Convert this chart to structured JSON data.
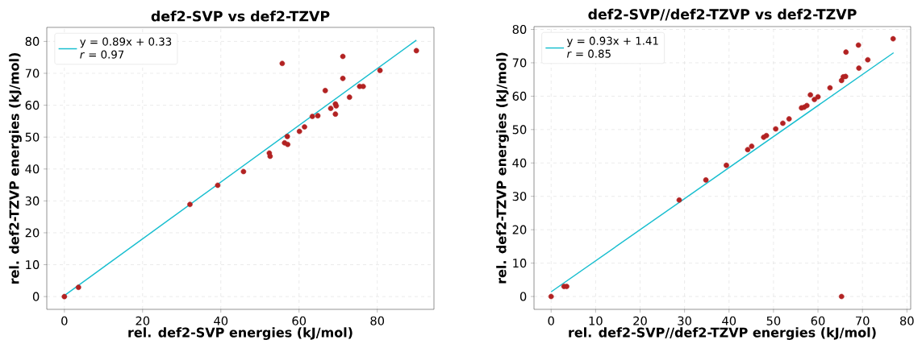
{
  "chart_data": [
    {
      "type": "scatter",
      "title": "def2-SVP vs def2-TZVP",
      "xlabel": "rel. def2-SVP energies (kJ/mol)",
      "ylabel": "rel. def2-TZVP energies (kJ/mol)",
      "x": [
        0,
        3.6,
        32.1,
        39.2,
        45.8,
        52.4,
        52.6,
        55.7,
        56.3,
        57.1,
        57.0,
        60.1,
        61.4,
        63.4,
        64.8,
        66.7,
        68.1,
        69.3,
        69.5,
        69.3,
        71.2,
        71.2,
        72.9,
        75.5,
        76.4,
        80.7,
        90.0
      ],
      "series": [
        {
          "color": "#b22222",
          "values": [
            0,
            2.9,
            28.9,
            34.9,
            39.2,
            45.0,
            44.0,
            73.1,
            48.2,
            47.7,
            50.2,
            51.8,
            53.2,
            56.5,
            56.7,
            64.6,
            59.0,
            60.4,
            59.8,
            57.2,
            75.3,
            68.4,
            62.5,
            65.9,
            65.9,
            70.9,
            77.1
          ]
        },
        {
          "type": "line",
          "name": "y = 0.89x + 0.33",
          "color": "#17becf",
          "marker": "none",
          "x": [
            0,
            90
          ],
          "values": [
            0.3,
            80.4
          ]
        }
      ],
      "annotations": [
        "*r* = 0.97"
      ],
      "xlim": [
        -4.5,
        94.5
      ],
      "ylim": [
        -4.0,
        84.4
      ],
      "xticks": [
        0,
        20,
        40,
        60,
        80
      ],
      "yticks": [
        0,
        10,
        20,
        30,
        40,
        50,
        60,
        70,
        80
      ],
      "grid": true,
      "legend": "top left",
      "marker": "circle"
    },
    {
      "type": "scatter",
      "title": "def2-SVP//def2-TZVP vs def2-TZVP",
      "xlabel": "rel. def2-SVP//def2-TZVP energies (kJ/mol)",
      "ylabel": "rel. def2-TZVP energies (kJ/mol)",
      "x": [
        0,
        2.9,
        3.5,
        28.8,
        34.8,
        39.4,
        44.2,
        45.1,
        47.8,
        48.4,
        50.5,
        52.1,
        53.5,
        56.3,
        56.9,
        57.5,
        58.3,
        59.2,
        60.0,
        62.7,
        65.3,
        65.7,
        66.2,
        65.3,
        66.3,
        69.1,
        69.2,
        71.2,
        76.9
      ],
      "series": [
        {
          "color": "#b22222",
          "values": [
            0,
            3.0,
            3.0,
            28.9,
            34.9,
            39.3,
            44.0,
            45.0,
            47.7,
            48.2,
            50.2,
            51.9,
            53.2,
            56.5,
            56.7,
            57.2,
            60.4,
            59.0,
            59.8,
            62.5,
            64.7,
            65.8,
            65.9,
            0,
            73.2,
            75.3,
            68.4,
            70.9,
            77.2
          ]
        },
        {
          "type": "line",
          "name": "y = 0.93x + 1.41",
          "color": "#17becf",
          "marker": "none",
          "x": [
            0,
            77
          ],
          "values": [
            1.4,
            73.0
          ]
        }
      ],
      "annotations": [
        "*r* = 0.85"
      ],
      "xlim": [
        -3.85,
        80.85
      ],
      "ylim": [
        -3.85,
        80.85
      ],
      "xticks": [
        0,
        10,
        20,
        30,
        40,
        50,
        60,
        70,
        80
      ],
      "yticks": [
        0,
        10,
        20,
        30,
        40,
        50,
        60,
        70,
        80
      ],
      "grid": true,
      "legend": "top left",
      "marker": "circle"
    }
  ]
}
